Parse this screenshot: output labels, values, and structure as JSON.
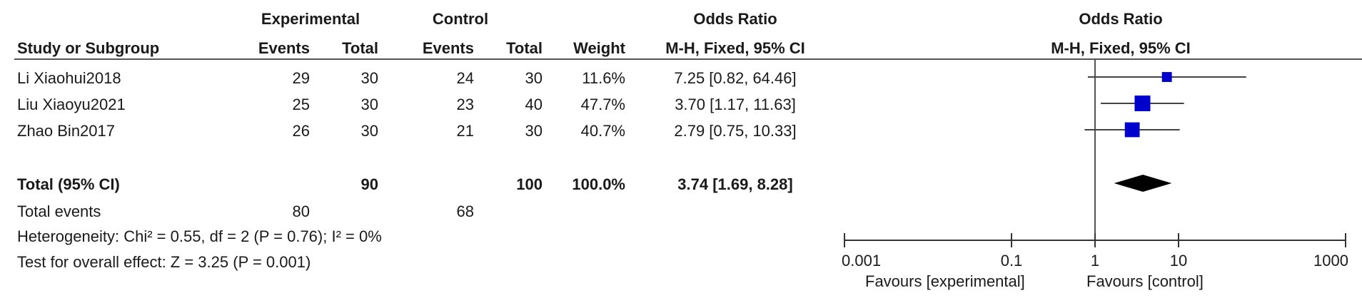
{
  "header": {
    "group_experimental": "Experimental",
    "group_control": "Control",
    "or_col_title": "Odds Ratio",
    "or_col_method": "M-H, Fixed, 95% CI",
    "plot_title": "Odds Ratio",
    "plot_method": "M-H, Fixed, 95% CI",
    "col_study": "Study or Subgroup",
    "col_exp_events": "Events",
    "col_exp_total": "Total",
    "col_ctl_events": "Events",
    "col_ctl_total": "Total",
    "col_weight": "Weight"
  },
  "studies": [
    {
      "name": "Li Xiaohui2018",
      "exp_events": "29",
      "exp_total": "30",
      "ctl_events": "24",
      "ctl_total": "30",
      "weight": "11.6%",
      "or_text": "7.25 [0.82, 64.46]"
    },
    {
      "name": "Liu Xiaoyu2021",
      "exp_events": "25",
      "exp_total": "30",
      "ctl_events": "23",
      "ctl_total": "40",
      "weight": "47.7%",
      "or_text": "3.70 [1.17, 11.63]"
    },
    {
      "name": "Zhao Bin2017",
      "exp_events": "26",
      "exp_total": "30",
      "ctl_events": "21",
      "ctl_total": "30",
      "weight": "40.7%",
      "or_text": "2.79 [0.75, 10.33]"
    }
  ],
  "total": {
    "label": "Total (95% CI)",
    "exp_total": "90",
    "ctl_total": "100",
    "weight": "100.0%",
    "or_text": "3.74 [1.69, 8.28]"
  },
  "total_events": {
    "label": "Total events",
    "exp": "80",
    "ctl": "68"
  },
  "heterogeneity": "Heterogeneity: Chi² = 0.55, df = 2 (P = 0.76); I² = 0%",
  "overall_effect": "Test for overall effect: Z = 3.25 (P = 0.001)",
  "axis_labels": {
    "favours_left": "Favours [experimental]",
    "favours_right": "Favours [control]"
  },
  "colors": {
    "marker": "#0000cc",
    "line": "#444444",
    "diamond": "#000000"
  },
  "chart_data": {
    "type": "forest",
    "x_scale": "log",
    "xlim": [
      0.001,
      1000
    ],
    "ticks": [
      0.001,
      0.1,
      1,
      10,
      1000
    ],
    "tick_labels": [
      "0.001",
      "0.1",
      "1",
      "10",
      "1000"
    ],
    "null_line": 1,
    "studies": [
      {
        "name": "Li Xiaohui2018",
        "or": 7.25,
        "ci": [
          0.82,
          64.46
        ],
        "weight": 11.6
      },
      {
        "name": "Liu Xiaoyu2021",
        "or": 3.7,
        "ci": [
          1.17,
          11.63
        ],
        "weight": 47.7
      },
      {
        "name": "Zhao Bin2017",
        "or": 2.79,
        "ci": [
          0.75,
          10.33
        ],
        "weight": 40.7
      }
    ],
    "pooled": {
      "or": 3.74,
      "ci": [
        1.69,
        8.28
      ]
    }
  }
}
